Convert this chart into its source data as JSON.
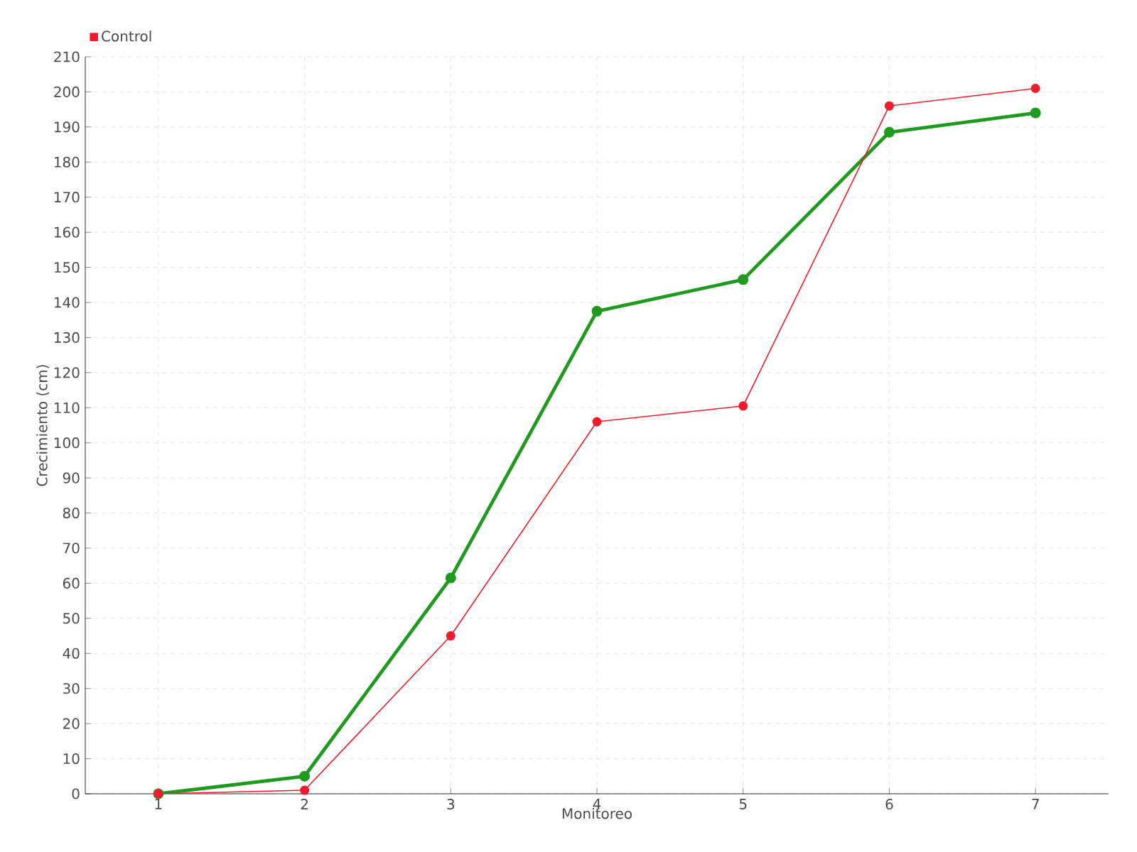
{
  "chart_data": {
    "type": "line",
    "xlabel": "Monitoreo",
    "ylabel": "Crecimiento (cm)",
    "x": [
      1,
      2,
      3,
      4,
      5,
      6,
      7
    ],
    "series": [
      {
        "color": "#1f9a1f",
        "values": [
          0,
          5,
          61.5,
          137.5,
          146.5,
          188.5,
          194
        ]
      },
      {
        "name": "Control",
        "color": "#ee1c2e",
        "values": [
          0,
          1,
          45,
          106,
          110.5,
          196,
          201
        ]
      }
    ],
    "xlim": [
      0.5,
      7.5
    ],
    "xticks": [
      1,
      2,
      3,
      4,
      5,
      6,
      7
    ],
    "ylim": [
      0,
      210
    ],
    "yticks": [
      0,
      10,
      20,
      30,
      40,
      50,
      60,
      70,
      80,
      90,
      100,
      110,
      120,
      130,
      140,
      150,
      160,
      170,
      180,
      190,
      200,
      210
    ],
    "grid": true,
    "legend": "top left",
    "marker": "circle",
    "line_style": "solid"
  }
}
